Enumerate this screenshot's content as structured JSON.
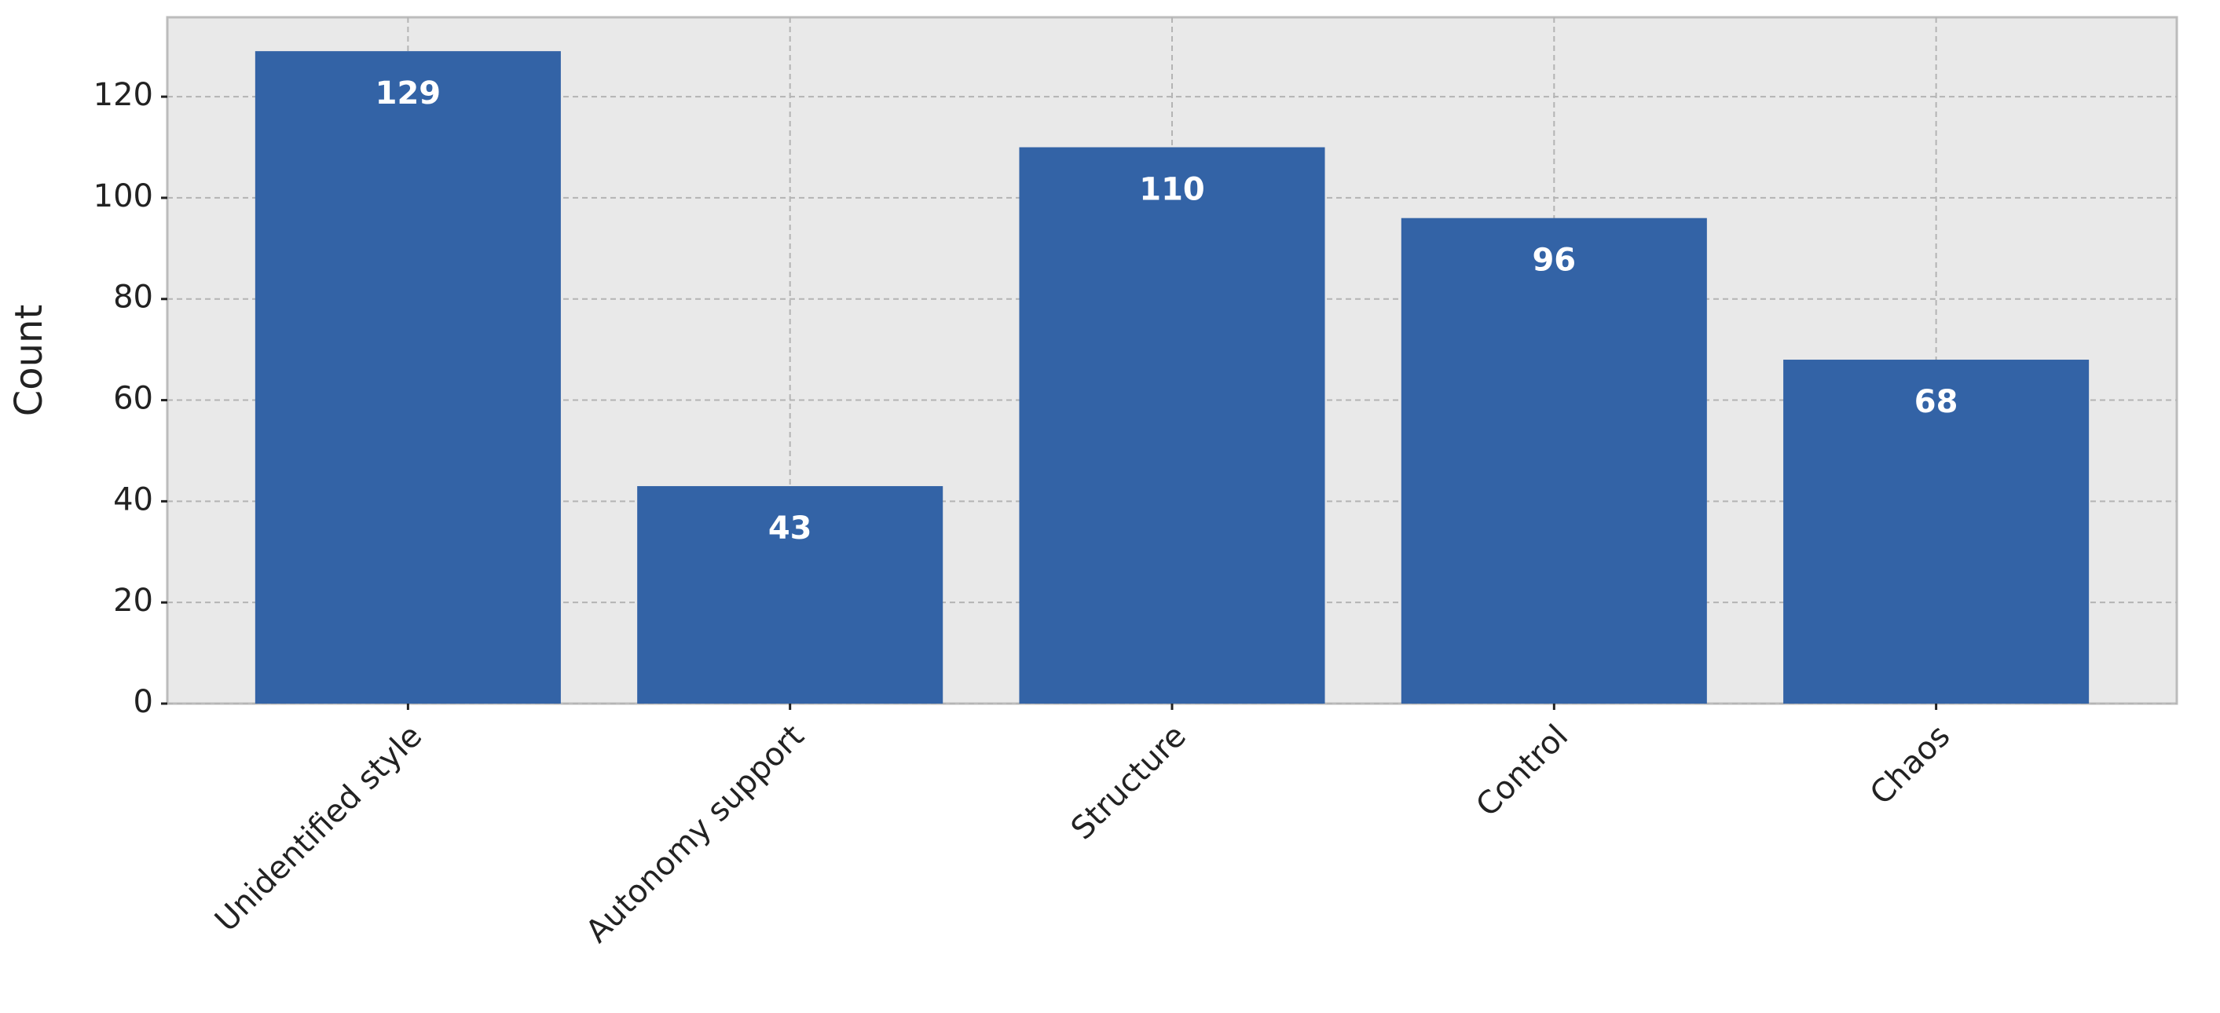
{
  "chart_data": {
    "type": "bar",
    "y_label": "Count",
    "categories": [
      "Unidentified style",
      "Autonomy support",
      "Structure",
      "Control",
      "Chaos"
    ],
    "values": [
      129,
      43,
      110,
      96,
      68
    ],
    "color": "#3363a6",
    "ylim": [
      0,
      135.7
    ],
    "yticks": [
      0,
      20,
      40,
      60,
      80,
      100,
      120
    ],
    "grid": true
  }
}
